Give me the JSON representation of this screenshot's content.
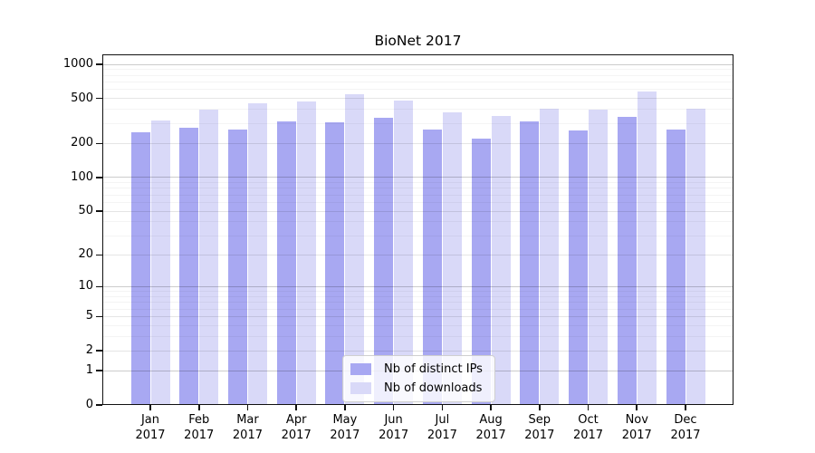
{
  "chart_data": {
    "type": "bar",
    "title": "BioNet 2017",
    "categories": [
      "Jan",
      "Feb",
      "Mar",
      "Apr",
      "May",
      "Jun",
      "Jul",
      "Aug",
      "Sep",
      "Oct",
      "Nov",
      "Dec"
    ],
    "category_year": "2017",
    "series": [
      {
        "name": "Nb of distinct IPs",
        "color": "#a8a8f2",
        "values": [
          250,
          275,
          265,
          315,
          310,
          340,
          265,
          220,
          315,
          260,
          345,
          265
        ]
      },
      {
        "name": "Nb of downloads",
        "color": "#d9d9f8",
        "values": [
          320,
          400,
          450,
          470,
          545,
          475,
          375,
          350,
          405,
          395,
          580,
          405
        ]
      }
    ],
    "xlabel": "",
    "ylabel": "",
    "y_scale": "symlog",
    "y_ticks": [
      0,
      1,
      2,
      5,
      10,
      20,
      50,
      100,
      200,
      500,
      1000
    ],
    "ylim": [
      0,
      1000
    ],
    "grid": "horizontal",
    "legend_position": "bottom-center"
  }
}
